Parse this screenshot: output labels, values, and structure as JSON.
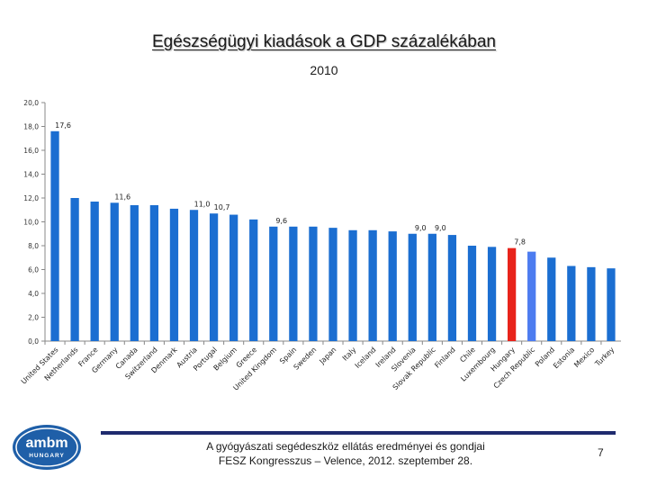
{
  "slide": {
    "title": "Egészségügyi kiadások a GDP százalékában",
    "subtitle": "2010",
    "footer_line1": "A gyógyászati segédeszköz ellátás eredményei és gondjai",
    "footer_line2": "FESZ Kongresszus – Velence, 2012. szeptember 28.",
    "page_number": "7",
    "logo_text": "ambm",
    "logo_subtext": "HUNGARY"
  },
  "colors": {
    "bar": "#1b6ed1",
    "highlight_hungary": "#e8231b",
    "highlight_czech": "#4c7cf0",
    "axis": "#888888",
    "grid": "#d9d9d9",
    "footer_rule": "#1f2b6e"
  },
  "chart_data": {
    "type": "bar",
    "title": "",
    "xlabel": "",
    "ylabel": "",
    "ylim": [
      0,
      20
    ],
    "y_ticks": [
      "0,0",
      "2,0",
      "4,0",
      "6,0",
      "8,0",
      "10,0",
      "12,0",
      "14,0",
      "16,0",
      "18,0",
      "20,0"
    ],
    "grid": false,
    "categories": [
      "United States",
      "Netherlands",
      "France",
      "Germany",
      "Canada",
      "Switzerland",
      "Denmark",
      "Austria",
      "Portugal",
      "Belgium",
      "Greece",
      "United Kingdom",
      "Spain",
      "Sweden",
      "Japan",
      "Italy",
      "Iceland",
      "Ireland",
      "Slovenia",
      "Slovak Republic",
      "Finland",
      "Chile",
      "Luxembourg",
      "Hungary",
      "Czech Republic",
      "Poland",
      "Estonia",
      "Mexico",
      "Turkey"
    ],
    "values": [
      17.6,
      12.0,
      11.7,
      11.6,
      11.4,
      11.4,
      11.1,
      11.0,
      10.7,
      10.6,
      10.2,
      9.6,
      9.6,
      9.6,
      9.5,
      9.3,
      9.3,
      9.2,
      9.0,
      9.0,
      8.9,
      8.0,
      7.9,
      7.8,
      7.5,
      7.0,
      6.3,
      6.2,
      6.1
    ],
    "highlight": {
      "Hungary": "red",
      "Czech Republic": "lightblue"
    },
    "data_labels": [
      {
        "category": "United States",
        "text": "17,6"
      },
      {
        "category": "Germany",
        "text": "11,6"
      },
      {
        "category": "Austria",
        "text": "11,0"
      },
      {
        "category": "Portugal",
        "text": "10,7"
      },
      {
        "category": "United Kingdom",
        "text": "9,6"
      },
      {
        "category": "Slovenia",
        "text": "9,0"
      },
      {
        "category": "Slovak Republic",
        "text": "9,0"
      },
      {
        "category": "Hungary",
        "text": "7,8"
      }
    ]
  }
}
